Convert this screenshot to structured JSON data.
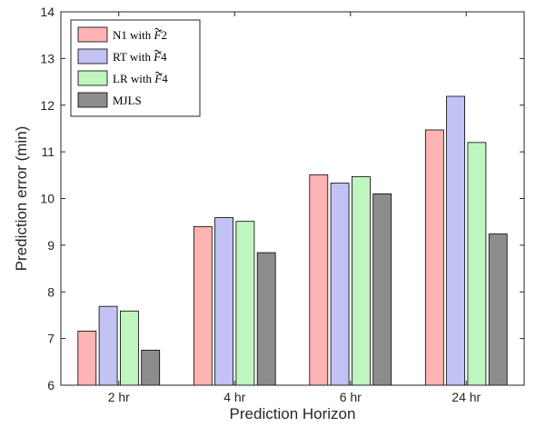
{
  "chart_data": {
    "type": "bar",
    "xlabel": "Prediction Horizon",
    "ylabel": "Prediction error (min)",
    "ylim": [
      6,
      14
    ],
    "yticks": [
      6,
      7,
      8,
      9,
      10,
      11,
      12,
      13,
      14
    ],
    "categories": [
      "2 hr",
      "4 hr",
      "6 hr",
      "24 hr"
    ],
    "legend_placement": "top-left",
    "grid": false,
    "series": [
      {
        "name": "N1 with F̃2",
        "name_main": "N1 with ",
        "name_sym": "F",
        "name_sub": "2",
        "color": "#FFB3B3",
        "values": [
          7.16,
          9.4,
          10.51,
          11.47
        ]
      },
      {
        "name": "RT with F̃4",
        "name_main": "RT with ",
        "name_sym": "F",
        "name_sub": "4",
        "color": "#C2C2F5",
        "values": [
          7.69,
          9.59,
          10.33,
          12.19
        ]
      },
      {
        "name": "LR with F̃4",
        "name_main": "LR with ",
        "name_sym": "F",
        "name_sub": "4",
        "color": "#BFF5BF",
        "values": [
          7.59,
          9.51,
          10.47,
          11.2
        ]
      },
      {
        "name": "MJLS",
        "name_main": "MJLS",
        "name_sym": "",
        "name_sub": "",
        "color": "#8C8C8C",
        "values": [
          6.75,
          8.84,
          10.1,
          9.24
        ]
      }
    ]
  }
}
